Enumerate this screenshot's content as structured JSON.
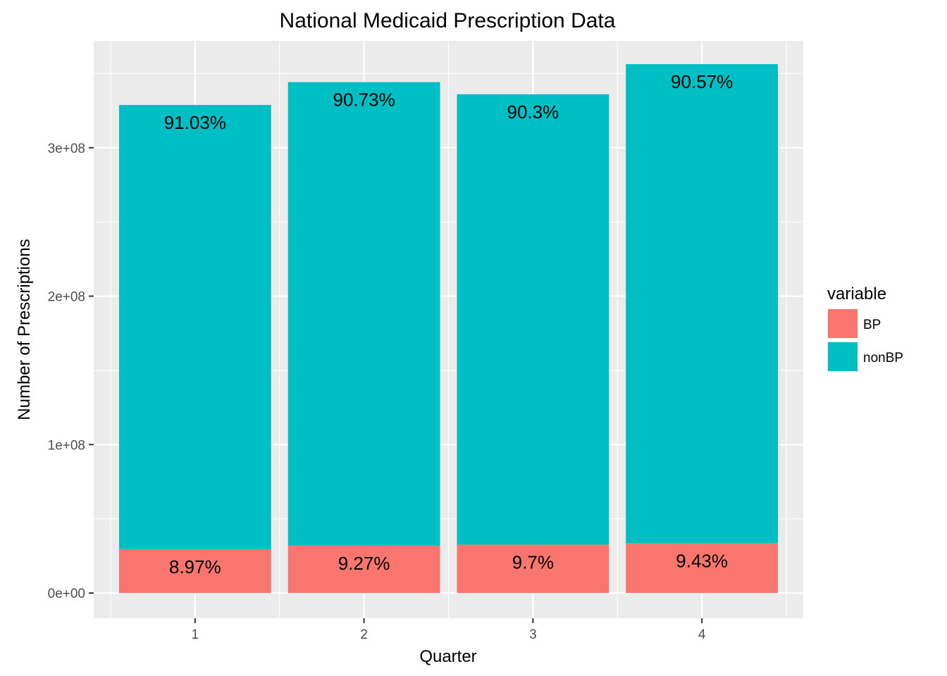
{
  "chart_data": {
    "type": "bar",
    "stacked": true,
    "title": "National Medicaid Prescription Data",
    "xlabel": "Quarter",
    "ylabel": "Number of Prescriptions",
    "categories": [
      "1",
      "2",
      "3",
      "4"
    ],
    "series": [
      {
        "name": "BP",
        "color": "#F8766D",
        "values": [
          29500000,
          31900000,
          32600000,
          33600000
        ],
        "labels": [
          "8.97%",
          "9.27%",
          "9.7%",
          "9.43%"
        ]
      },
      {
        "name": "nonBP",
        "color": "#00BFC4",
        "values": [
          299300000,
          312300000,
          303400000,
          322700000
        ],
        "labels": [
          "91.03%",
          "90.73%",
          "90.3%",
          "90.57%"
        ]
      }
    ],
    "ylim": [
      -17000000,
      372000000
    ],
    "yticks": [
      {
        "value": 0,
        "label": "0e+00"
      },
      {
        "value": 100000000,
        "label": "1e+08"
      },
      {
        "value": 200000000,
        "label": "2e+08"
      },
      {
        "value": 300000000,
        "label": "3e+08"
      }
    ],
    "grid": true,
    "legend": {
      "title": "variable",
      "position": "right"
    },
    "panel_background": "#EBEBEB"
  }
}
